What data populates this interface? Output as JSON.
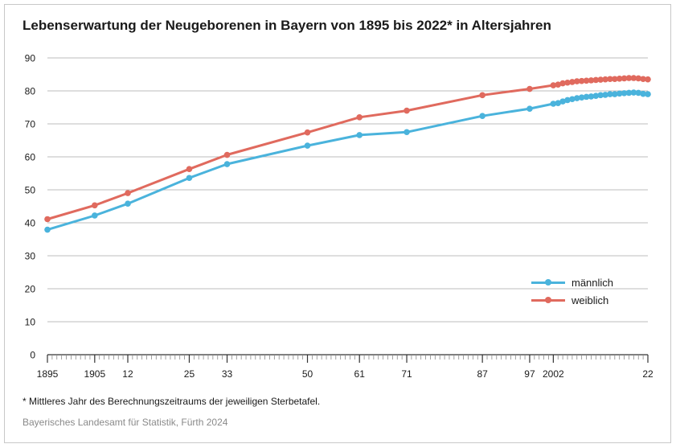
{
  "title": "Lebenserwartung der Neugeborenen in Bayern von 1895 bis 2022* in Altersjahren",
  "footnote": "* Mittleres Jahr des Berechnungszeitraums der jeweiligen Sterbetafel.",
  "source": "Bayerisches Landesamt für Statistik, Fürth 2024",
  "colors": {
    "maennlich": "#4ab3dc",
    "weiblich": "#e06a5e",
    "grid": "#bdbdbd",
    "axis": "#333333"
  },
  "chart_data": {
    "type": "line",
    "title": "Lebenserwartung der Neugeborenen in Bayern von 1895 bis 2022* in Altersjahren",
    "xlabel": "",
    "ylabel": "",
    "xlim": [
      1895,
      2022
    ],
    "ylim": [
      0,
      90
    ],
    "y_ticks": [
      0,
      10,
      20,
      30,
      40,
      50,
      60,
      70,
      80,
      90
    ],
    "x_tick_labels": [
      {
        "x": 1895,
        "label": "1895"
      },
      {
        "x": 1905,
        "label": "1905"
      },
      {
        "x": 1912,
        "label": "12"
      },
      {
        "x": 1925,
        "label": "25"
      },
      {
        "x": 1933,
        "label": "33"
      },
      {
        "x": 1950,
        "label": "50"
      },
      {
        "x": 1961,
        "label": "61"
      },
      {
        "x": 1971,
        "label": "71"
      },
      {
        "x": 1987,
        "label": "87"
      },
      {
        "x": 1997,
        "label": "97"
      },
      {
        "x": 2002,
        "label": "2002"
      },
      {
        "x": 2022,
        "label": "22"
      }
    ],
    "grid": true,
    "legend": "right",
    "series": [
      {
        "name": "männlich",
        "color": "#4ab3dc",
        "x": [
          1895,
          1905,
          1912,
          1925,
          1933,
          1950,
          1961,
          1971,
          1987,
          1997,
          2002,
          2003,
          2004,
          2005,
          2006,
          2007,
          2008,
          2009,
          2010,
          2011,
          2012,
          2013,
          2014,
          2015,
          2016,
          2017,
          2018,
          2019,
          2020,
          2021,
          2022
        ],
        "y": [
          37.9,
          42.2,
          45.8,
          53.6,
          57.8,
          63.4,
          66.6,
          67.5,
          72.4,
          74.6,
          76.1,
          76.3,
          76.8,
          77.2,
          77.5,
          77.8,
          78.0,
          78.2,
          78.3,
          78.5,
          78.7,
          78.8,
          79.0,
          79.0,
          79.2,
          79.3,
          79.4,
          79.5,
          79.4,
          79.1,
          79.0
        ]
      },
      {
        "name": "weiblich",
        "color": "#e06a5e",
        "x": [
          1895,
          1905,
          1912,
          1925,
          1933,
          1950,
          1961,
          1971,
          1987,
          1997,
          2002,
          2003,
          2004,
          2005,
          2006,
          2007,
          2008,
          2009,
          2010,
          2011,
          2012,
          2013,
          2014,
          2015,
          2016,
          2017,
          2018,
          2019,
          2020,
          2021,
          2022
        ],
        "y": [
          41.1,
          45.3,
          49.0,
          56.3,
          60.6,
          67.4,
          72.0,
          74.0,
          78.7,
          80.6,
          81.7,
          81.9,
          82.3,
          82.5,
          82.7,
          82.9,
          83.0,
          83.1,
          83.2,
          83.3,
          83.4,
          83.5,
          83.6,
          83.6,
          83.7,
          83.8,
          83.9,
          83.9,
          83.8,
          83.6,
          83.5
        ]
      }
    ]
  }
}
